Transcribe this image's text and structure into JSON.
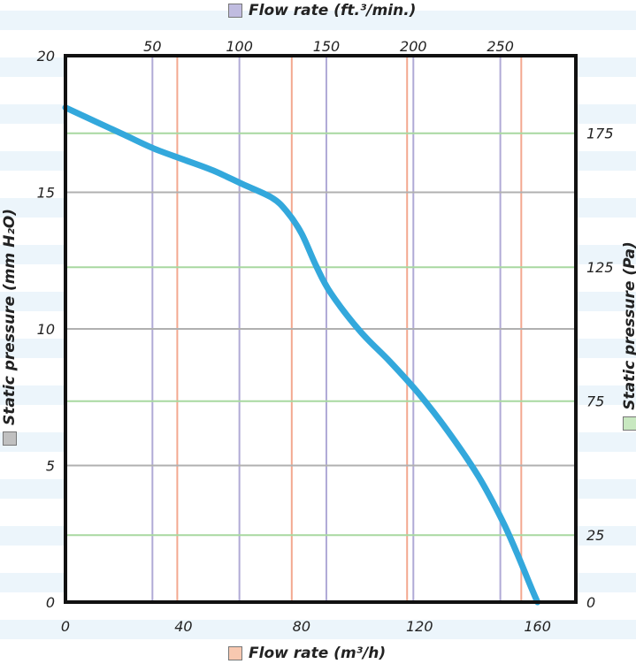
{
  "chart_data": {
    "type": "line",
    "x_bottom": {
      "label": "Flow rate (m³/h)",
      "range": [
        0,
        173
      ],
      "ticks": [
        0,
        40,
        80,
        120,
        160
      ],
      "swatch_color": "#f8c8b0",
      "gridline_color": "#f3a890",
      "grid_at": [
        37.9,
        76.7,
        115.8,
        154.5
      ]
    },
    "x_top": {
      "label": "Flow rate (ft.³/min.)",
      "ticks": [
        50,
        100,
        150,
        200,
        250
      ],
      "swatch_color": "#c0bce0",
      "gridline_color": "#b0aad6",
      "grid_values": [
        50,
        100,
        150,
        200,
        250
      ],
      "m3h_per_unit": 0.5896
    },
    "y_left": {
      "label": "Static pressure (mm H₂O)",
      "range": [
        0,
        20
      ],
      "ticks": [
        0,
        5,
        10,
        15,
        20
      ],
      "swatch_color": "#c0c0c0",
      "gridline_color": "#b0b0b0"
    },
    "y_right": {
      "label": "Static pressure (Pa)",
      "ticks": [
        0,
        25,
        75,
        125,
        175
      ],
      "swatch_color": "#c8e8c0",
      "gridline_color": "#a8d8a0",
      "grid_values": [
        25,
        75,
        125,
        175
      ],
      "mmh2o_per_unit": 0.09806
    },
    "series": [
      {
        "color": "#33a8dc",
        "x": [
          0,
          10,
          20,
          30,
          40,
          50,
          60,
          70,
          75,
          80,
          85,
          90,
          100,
          110,
          120,
          130,
          140,
          148,
          153,
          158,
          160
        ],
        "y": [
          18.1,
          17.6,
          17.1,
          16.6,
          16.2,
          15.8,
          15.3,
          14.8,
          14.3,
          13.5,
          12.3,
          11.3,
          9.9,
          8.8,
          7.6,
          6.2,
          4.6,
          3.0,
          1.8,
          0.5,
          0
        ]
      }
    ]
  }
}
